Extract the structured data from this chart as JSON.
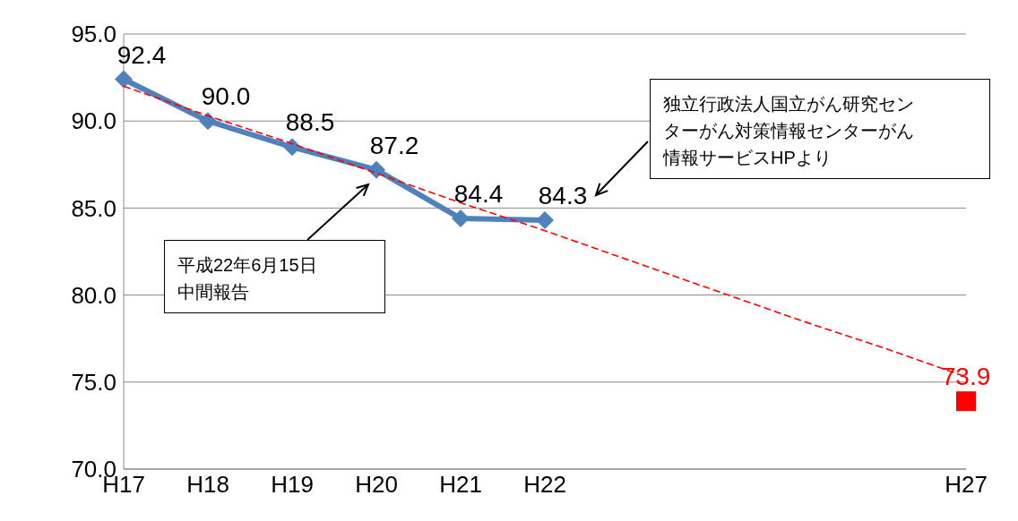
{
  "chart_data": {
    "type": "line",
    "categories": [
      "H17",
      "H18",
      "H19",
      "H20",
      "H21",
      "H22",
      null,
      null,
      null,
      null,
      "H27"
    ],
    "series": [
      {
        "color": "#4f81bd",
        "marker": "diamond",
        "values": [
          92.4,
          90.0,
          88.5,
          87.2,
          84.4,
          84.3,
          null,
          null,
          null,
          null,
          null
        ],
        "value_labels": [
          "92.4",
          "90.0",
          "88.5",
          "87.2",
          "84.4",
          "84.3",
          null,
          null,
          null,
          null,
          null
        ]
      },
      {
        "type": "scatter",
        "color": "#ff0000",
        "marker": "square",
        "values": [
          null,
          null,
          null,
          null,
          null,
          null,
          null,
          null,
          null,
          null,
          73.9
        ],
        "value_labels": [
          null,
          null,
          null,
          null,
          null,
          null,
          null,
          null,
          null,
          null,
          "73.9"
        ]
      },
      {
        "type": "line",
        "color": "#ff0000",
        "marker": "none",
        "line_style": "dashed",
        "values": [
          92.0,
          90.3,
          88.7,
          87.0,
          85.3,
          83.7,
          82.0,
          80.3,
          78.6,
          77.0,
          75.3
        ]
      }
    ],
    "ylim": [
      70,
      95
    ],
    "yticks": [
      {
        "value": 70,
        "label": "70.0"
      },
      {
        "value": 75,
        "label": "75.0"
      },
      {
        "value": 80,
        "label": "80.0"
      },
      {
        "value": 85,
        "label": "85.0"
      },
      {
        "value": 90,
        "label": "90.0"
      },
      {
        "value": 95,
        "label": "95.0"
      }
    ],
    "grid": "y",
    "annotations": [
      "平成22年6月15日中間報告",
      "独立行政法人国立がん研究センターがん対策情報センターがん情報サービスHPより"
    ]
  }
}
